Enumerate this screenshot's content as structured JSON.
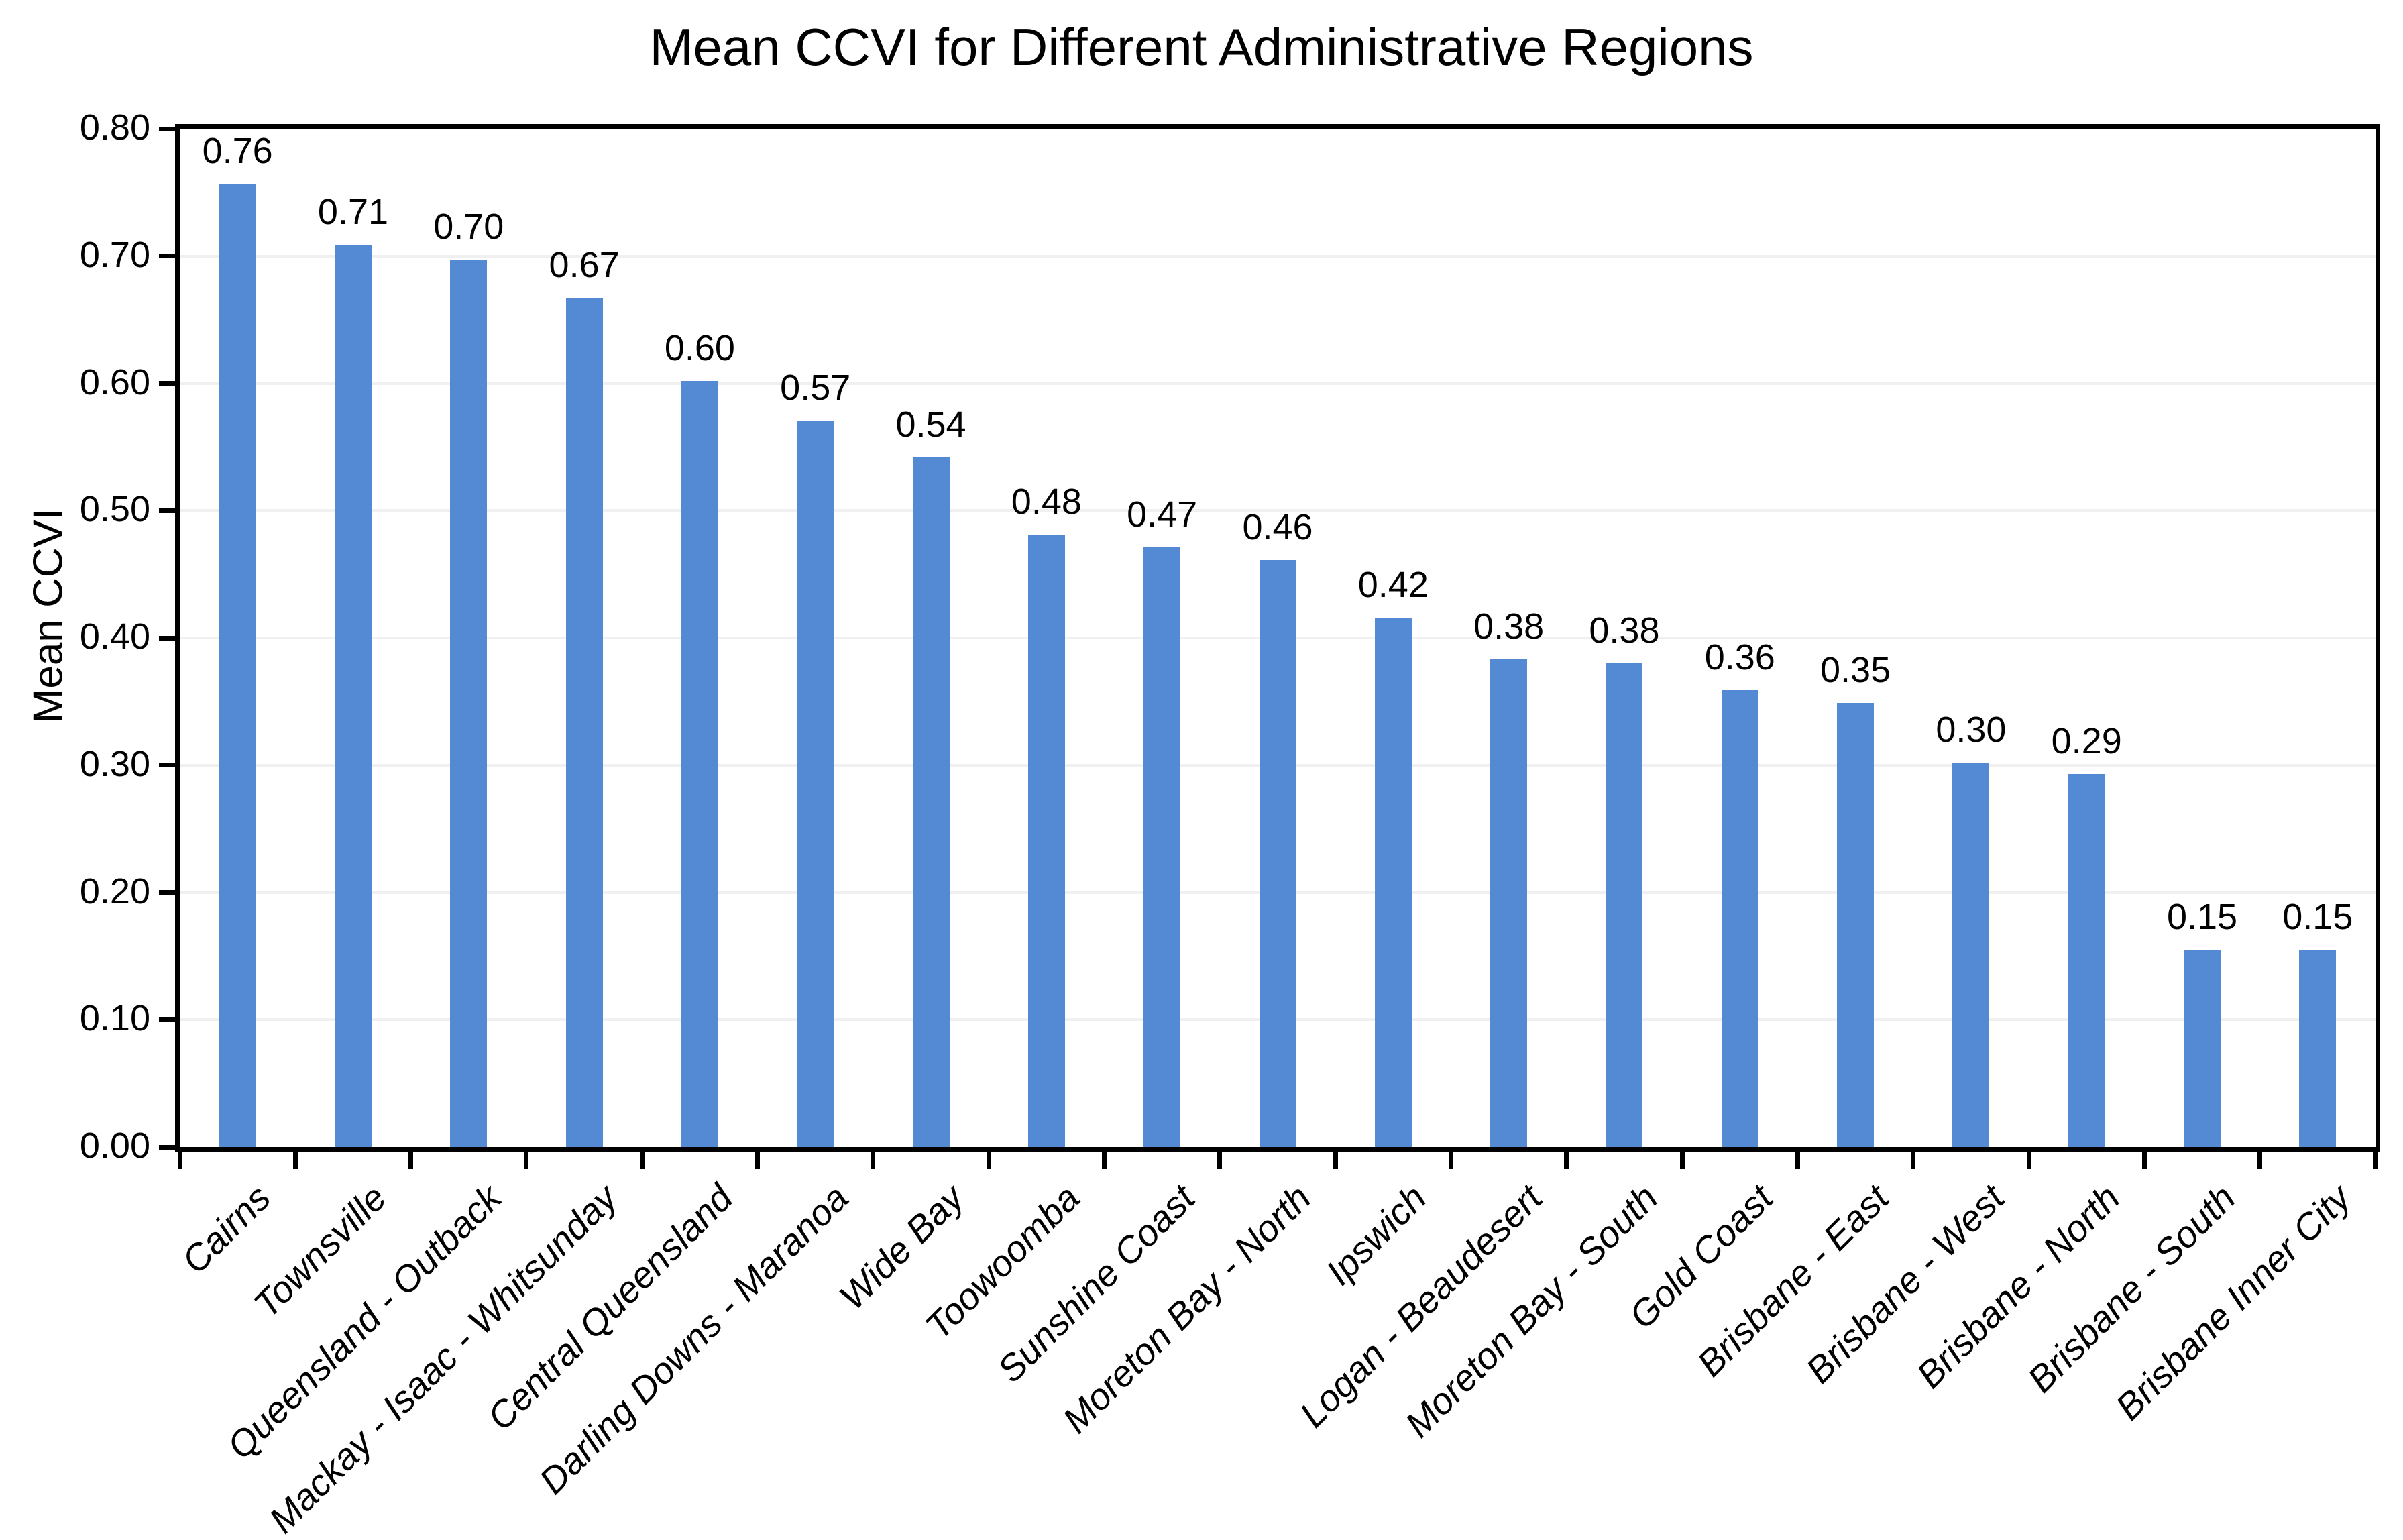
{
  "chart_data": {
    "type": "bar",
    "title": "Mean CCVI for Different Administrative Regions",
    "xlabel": "",
    "ylabel": "Mean CCVI",
    "categories": [
      "Cairns",
      "Townsville",
      "Queensland - Outback",
      "Mackay - Isaac - Whitsunday",
      "Central Queensland",
      "Darling Downs - Maranoa",
      "Wide Bay",
      "Toowoomba",
      "Sunshine Coast",
      "Moreton Bay - North",
      "Ipswich",
      "Logan - Beaudesert",
      "Moreton Bay - South",
      "Gold Coast",
      "Brisbane - East",
      "Brisbane - West",
      "Brisbane - North",
      "Brisbane - South",
      "Brisbane Inner City"
    ],
    "values": [
      0.757,
      0.709,
      0.697,
      0.667,
      0.602,
      0.571,
      0.542,
      0.481,
      0.471,
      0.461,
      0.416,
      0.383,
      0.38,
      0.359,
      0.349,
      0.302,
      0.293,
      0.155,
      0.155
    ],
    "value_labels": [
      "0.76",
      "0.71",
      "0.70",
      "0.67",
      "0.60",
      "0.57",
      "0.54",
      "0.48",
      "0.47",
      "0.46",
      "0.42",
      "0.38",
      "0.38",
      "0.36",
      "0.35",
      "0.30",
      "0.29",
      "0.15",
      "0.15"
    ],
    "ylim": [
      0,
      0.8
    ],
    "yticks": [
      "0.00",
      "0.10",
      "0.20",
      "0.30",
      "0.40",
      "0.50",
      "0.60",
      "0.70",
      "0.80"
    ],
    "legend_position": "none",
    "grid": "horizontal",
    "bar_color": "#548AD3",
    "gridline_color": "#F0F0F0",
    "axis_color": "#000000",
    "text_color": "#000000"
  }
}
